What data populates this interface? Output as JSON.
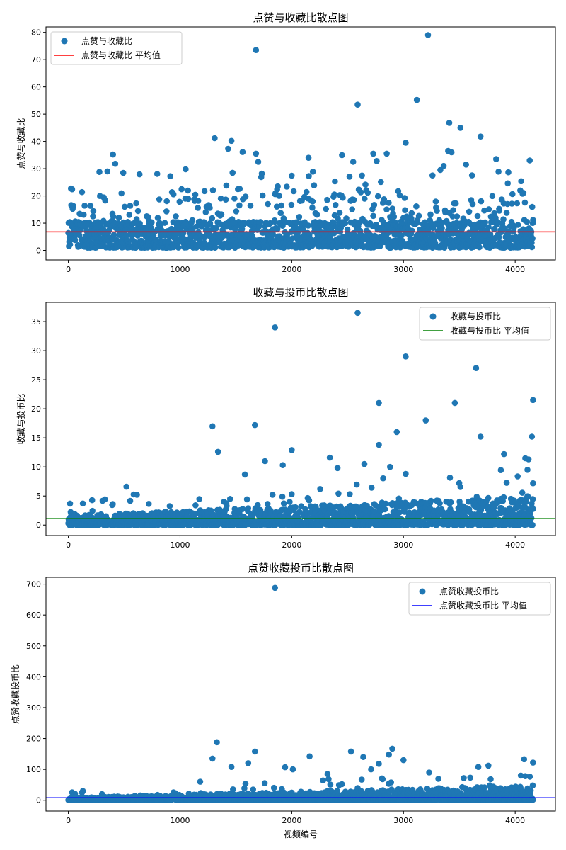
{
  "chart_data": [
    {
      "type": "scatter",
      "title": "点赞与收藏比散点图",
      "xlabel": "",
      "ylabel": "点赞与收藏比",
      "xlim": [
        -200,
        4360
      ],
      "ylim": [
        -3.5,
        82
      ],
      "xticks": [
        0,
        1000,
        2000,
        3000,
        4000
      ],
      "yticks": [
        0,
        10,
        20,
        30,
        40,
        50,
        60,
        70,
        80
      ],
      "series_name": "点赞与收藏比",
      "point_color": "#1f77b4",
      "mean": 6.8,
      "mean_label": "点赞与收藏比 平均值",
      "mean_color": "#ff0000",
      "legend_loc": "upper-left",
      "n_points": 4160,
      "outliers": [
        [
          1680,
          73.5
        ],
        [
          3220,
          79
        ],
        [
          2590,
          53.5
        ],
        [
          3120,
          55.2
        ],
        [
          3410,
          46.8
        ],
        [
          3510,
          45
        ],
        [
          3690,
          41.8
        ],
        [
          1310,
          41.2
        ],
        [
          1460,
          40.2
        ],
        [
          1430,
          37.3
        ],
        [
          1560,
          36.1
        ],
        [
          1680,
          35.5
        ],
        [
          2450,
          35
        ],
        [
          2730,
          35.5
        ],
        [
          2850,
          35.5
        ],
        [
          3020,
          39.5
        ],
        [
          3400,
          36.5
        ],
        [
          3430,
          36
        ],
        [
          3830,
          33.5
        ],
        [
          4130,
          33
        ],
        [
          400,
          35.2
        ],
        [
          420,
          31.8
        ],
        [
          350,
          29
        ],
        [
          1050,
          29.8
        ],
        [
          1470,
          28.5
        ],
        [
          1700,
          32.5
        ],
        [
          2150,
          34
        ],
        [
          2550,
          32.5
        ],
        [
          2760,
          32.8
        ],
        [
          3260,
          27.5
        ],
        [
          3560,
          31.5
        ],
        [
          3360,
          31
        ],
        [
          3330,
          29.5
        ]
      ]
    },
    {
      "type": "scatter",
      "title": "收藏与投币比散点图",
      "xlabel": "",
      "ylabel": "收藏与投币比",
      "xlim": [
        -200,
        4360
      ],
      "ylim": [
        -1.8,
        38.3
      ],
      "xticks": [
        0,
        1000,
        2000,
        3000,
        4000
      ],
      "yticks": [
        0,
        5,
        10,
        15,
        20,
        25,
        30,
        35
      ],
      "series_name": "收藏与投币比",
      "point_color": "#1f77b4",
      "mean": 1.1,
      "mean_label": "收藏与投币比 平均值",
      "mean_color": "#008000",
      "legend_loc": "upper-right",
      "n_points": 4160,
      "outliers": [
        [
          2590,
          36.5
        ],
        [
          1850,
          34
        ],
        [
          3020,
          29
        ],
        [
          3650,
          27
        ],
        [
          4160,
          21.5
        ],
        [
          2780,
          21
        ],
        [
          3460,
          21
        ],
        [
          3200,
          18
        ],
        [
          1290,
          17
        ],
        [
          1670,
          17.2
        ],
        [
          2940,
          16
        ],
        [
          4150,
          15.2
        ],
        [
          3690,
          15.2
        ],
        [
          2780,
          13.8
        ],
        [
          1340,
          12.6
        ],
        [
          2000,
          12.9
        ],
        [
          3900,
          12.2
        ],
        [
          4090,
          11.5
        ],
        [
          4120,
          11.3
        ],
        [
          2340,
          11.6
        ],
        [
          1760,
          11
        ],
        [
          1920,
          10.3
        ],
        [
          2410,
          9.8
        ],
        [
          2650,
          10.5
        ],
        [
          2880,
          10
        ],
        [
          3020,
          8.8
        ],
        [
          4110,
          9.5
        ],
        [
          1580,
          8.7
        ],
        [
          520,
          6.6
        ],
        [
          4160,
          7.2
        ]
      ]
    },
    {
      "type": "scatter",
      "title": "点赞收藏投币比散点图",
      "xlabel": "视频编号",
      "ylabel": "点赞收藏投币比",
      "xlim": [
        -200,
        4360
      ],
      "ylim": [
        -35,
        722
      ],
      "xticks": [
        0,
        1000,
        2000,
        3000,
        4000
      ],
      "yticks": [
        0,
        100,
        200,
        300,
        400,
        500,
        600,
        700
      ],
      "series_name": "点赞收藏投币比",
      "point_color": "#1f77b4",
      "mean": 8,
      "mean_label": "点赞收藏投币比 平均值",
      "mean_color": "#0000ff",
      "legend_loc": "upper-right",
      "n_points": 4160,
      "outliers": [
        [
          1850,
          688
        ],
        [
          1330,
          188
        ],
        [
          1290,
          135
        ],
        [
          1670,
          158
        ],
        [
          2530,
          158
        ],
        [
          2900,
          167
        ],
        [
          2870,
          148
        ],
        [
          2160,
          142
        ],
        [
          2640,
          140
        ],
        [
          4080,
          133
        ],
        [
          3000,
          130
        ],
        [
          4160,
          122
        ],
        [
          1460,
          108
        ],
        [
          1610,
          120
        ],
        [
          1940,
          107
        ],
        [
          2010,
          100
        ],
        [
          3760,
          112
        ],
        [
          3670,
          108
        ],
        [
          2780,
          118
        ],
        [
          2320,
          85
        ],
        [
          2710,
          100
        ],
        [
          3230,
          90
        ],
        [
          4090,
          78
        ],
        [
          3540,
          72
        ],
        [
          1180,
          60
        ],
        [
          130,
          30
        ]
      ]
    }
  ]
}
